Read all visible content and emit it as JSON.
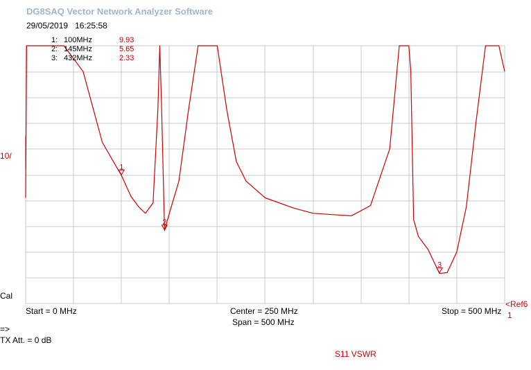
{
  "app": {
    "title": "DG8SAQ Vector Network Analyzer Software",
    "date": "29/05/2019",
    "time": "16:25:58"
  },
  "markers": [
    {
      "id": "1:",
      "freq": "100MHz",
      "value": "9.93",
      "label": "1"
    },
    {
      "id": "2:",
      "freq": "145MHz",
      "value": "5.65",
      "label": "2"
    },
    {
      "id": "3:",
      "freq": "432MHz",
      "value": "2.33",
      "label": "3"
    }
  ],
  "axis": {
    "scale_label": "10/",
    "cal_label": "Cal",
    "start_label": "Start = 0 MHz",
    "center_label": "Center = 250 MHz",
    "span_label": "Span = 500 MHz",
    "stop_label": "Stop = 500 MHz",
    "ref_label": "<Ref6",
    "ref_sub": "1"
  },
  "status": {
    "arrow": "=>",
    "tx_att": "TX Att. = 0 dB",
    "trace_name": "S11 VSWR"
  },
  "colors": {
    "trace": "#cc0000",
    "grid": "#c8c8c8",
    "title": "#9fb6cc"
  },
  "chart_data": {
    "type": "line",
    "series": [
      {
        "name": "S11 VSWR",
        "x": [
          0,
          1,
          10,
          20,
          40,
          60,
          80,
          100,
          110,
          118,
          125,
          133,
          138,
          140,
          142,
          145,
          150,
          160,
          170,
          180,
          190,
          195,
          200,
          210,
          220,
          230,
          250,
          280,
          300,
          320,
          340,
          360,
          380,
          390,
          396,
          400,
          402,
          405,
          410,
          420,
          432,
          440,
          450,
          460,
          470,
          480,
          484,
          486,
          488,
          490,
          494,
          500
        ],
        "y": [
          8.2,
          60,
          60,
          55,
          30,
          18,
          12.5,
          9.93,
          8.3,
          7.5,
          7.0,
          7.8,
          15,
          60,
          15,
          5.65,
          7.0,
          9.5,
          15,
          30,
          60,
          60,
          30,
          15,
          11,
          9.5,
          8.2,
          7.4,
          7.0,
          6.9,
          6.8,
          7.6,
          12,
          25,
          60,
          60,
          18,
          6.5,
          5.2,
          4.2,
          2.33,
          2.4,
          4.0,
          7.5,
          14,
          30,
          60,
          60,
          50,
          45,
          30,
          18
        ]
      }
    ],
    "xlabel": "",
    "ylabel": "",
    "xlim": [
      0,
      500
    ],
    "ylim": [
      0,
      100
    ],
    "x_ticks": [
      0,
      50,
      100,
      150,
      200,
      250,
      300,
      350,
      400,
      450,
      500
    ],
    "grid": true
  }
}
